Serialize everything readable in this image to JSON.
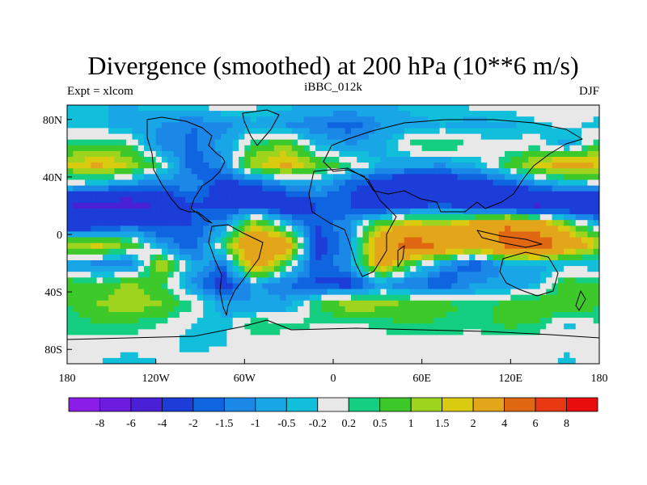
{
  "chart_data": {
    "type": "heatmap",
    "title": "Divergence (smoothed) at 200 hPa (10**6 m/s)",
    "left_label": "Expt = xlcom",
    "center_label": "iBBC_012k",
    "right_label": "DJF",
    "x_ticks": [
      {
        "value": -180,
        "label": "180"
      },
      {
        "value": -120,
        "label": "120W"
      },
      {
        "value": -60,
        "label": "60W"
      },
      {
        "value": 0,
        "label": "0"
      },
      {
        "value": 60,
        "label": "60E"
      },
      {
        "value": 120,
        "label": "120E"
      },
      {
        "value": 180,
        "label": "180"
      }
    ],
    "y_ticks": [
      {
        "value": 80,
        "label": "80N"
      },
      {
        "value": 40,
        "label": "40N"
      },
      {
        "value": 0,
        "label": "0"
      },
      {
        "value": -40,
        "label": "40S"
      },
      {
        "value": -80,
        "label": "80S"
      }
    ],
    "xlim": [
      -180,
      180
    ],
    "ylim": [
      -90,
      90
    ],
    "colorbar": {
      "levels": [
        "-8",
        "-6",
        "-4",
        "-2",
        "-1.5",
        "-1",
        "-0.5",
        "-0.2",
        "0.2",
        "0.5",
        "1",
        "1.5",
        "2",
        "4",
        "6",
        "8"
      ],
      "colors": [
        "#8a1de6",
        "#6e1be0",
        "#4a20d6",
        "#1d3dd8",
        "#0f64e0",
        "#1b88e8",
        "#18a6e6",
        "#12bfdb",
        "#e8e8e8",
        "#14cf82",
        "#3ec92a",
        "#9ed41e",
        "#d9cc10",
        "#e3a51a",
        "#e06812",
        "#e83812",
        "#e80e0e"
      ]
    },
    "z_values": [
      [
        -0.5,
        -0.5,
        -0.5,
        -0.3,
        -0.1,
        0.1,
        -0.1,
        -0.4,
        -0.5,
        -0.6,
        -0.5,
        -0.4,
        -0.3,
        -0.1,
        0.0,
        0.1,
        0.1,
        0.0
      ],
      [
        -0.4,
        -0.4,
        -0.7,
        -1.0,
        -1.5,
        -1.2,
        -0.6,
        -1.0,
        -1.4,
        -1.8,
        -1.0,
        -0.6,
        -0.5,
        -0.7,
        -0.6,
        -0.3,
        -0.1,
        -0.3
      ],
      [
        0.4,
        0.6,
        0.3,
        -1.2,
        -1.6,
        -0.8,
        0.5,
        1.0,
        -0.5,
        -1.0,
        -0.6,
        0.3,
        0.6,
        0.2,
        -0.1,
        0.0,
        -0.8,
        0.6
      ],
      [
        1.5,
        2.2,
        1.5,
        0.3,
        -2.0,
        -1.0,
        1.5,
        2.3,
        1.0,
        0.3,
        -0.5,
        -0.8,
        -1.0,
        -0.5,
        0.5,
        1.8,
        2.5,
        2.0
      ],
      [
        -0.2,
        -0.6,
        -1.2,
        -1.5,
        -1.0,
        -2.5,
        -2.0,
        -1.2,
        -0.7,
        -1.8,
        -2.5,
        -3.5,
        -3.0,
        -2.5,
        -2.0,
        -1.2,
        -0.6,
        -0.4
      ],
      [
        -4.0,
        -4.5,
        -5.0,
        -3.5,
        -2.0,
        -2.5,
        -2.5,
        -3.0,
        -2.0,
        -2.0,
        -3.0,
        -2.5,
        -2.0,
        -3.0,
        -4.0,
        -4.5,
        -3.5,
        -4.0
      ],
      [
        -3.0,
        -3.0,
        -2.0,
        -2.2,
        -2.0,
        -1.0,
        1.5,
        -0.5,
        -2.0,
        -1.0,
        1.0,
        2.0,
        1.5,
        2.5,
        4.0,
        3.0,
        1.0,
        -0.5
      ],
      [
        1.5,
        1.8,
        1.0,
        -1.0,
        -2.0,
        0.5,
        4.0,
        3.0,
        -2.5,
        -1.0,
        3.0,
        5.0,
        4.0,
        3.0,
        4.5,
        6.0,
        3.0,
        1.5
      ],
      [
        -1.0,
        -1.2,
        -1.5,
        1.5,
        -0.6,
        -1.5,
        3.0,
        0.5,
        -2.0,
        -1.0,
        2.5,
        0.5,
        -1.0,
        -2.0,
        -0.8,
        -0.6,
        -0.4,
        -0.5
      ],
      [
        1.0,
        0.5,
        1.2,
        0.5,
        -1.0,
        -2.5,
        -0.8,
        -1.5,
        -2.0,
        -2.5,
        -1.0,
        -1.5,
        -2.0,
        -1.0,
        -0.8,
        -0.6,
        0.8,
        0.5
      ],
      [
        0.5,
        1.0,
        1.5,
        1.0,
        0.3,
        -0.8,
        -1.0,
        -0.8,
        0.5,
        1.5,
        1.2,
        1.0,
        0.7,
        0.3,
        0.6,
        1.0,
        0.8,
        0.6
      ],
      [
        0.3,
        0.5,
        0.4,
        0.2,
        -0.2,
        -0.4,
        0.5,
        0.3,
        0.2,
        0.1,
        0.3,
        0.5,
        0.4,
        0.3,
        0.6,
        0.5,
        -0.3,
        0.2
      ],
      [
        0.1,
        0.0,
        0.0,
        0.0,
        -0.4,
        -0.2,
        0.0,
        0.0,
        0.1,
        0.0,
        0.0,
        0.0,
        0.0,
        0.0,
        0.0,
        0.0,
        -0.1,
        0.0
      ],
      [
        0.0,
        -0.2,
        -0.4,
        -0.2,
        0.0,
        0.1,
        0.0,
        0.0,
        -0.1,
        0.0,
        0.1,
        0.0,
        0.0,
        0.0,
        0.0,
        0.0,
        -0.3,
        0.0
      ]
    ]
  }
}
